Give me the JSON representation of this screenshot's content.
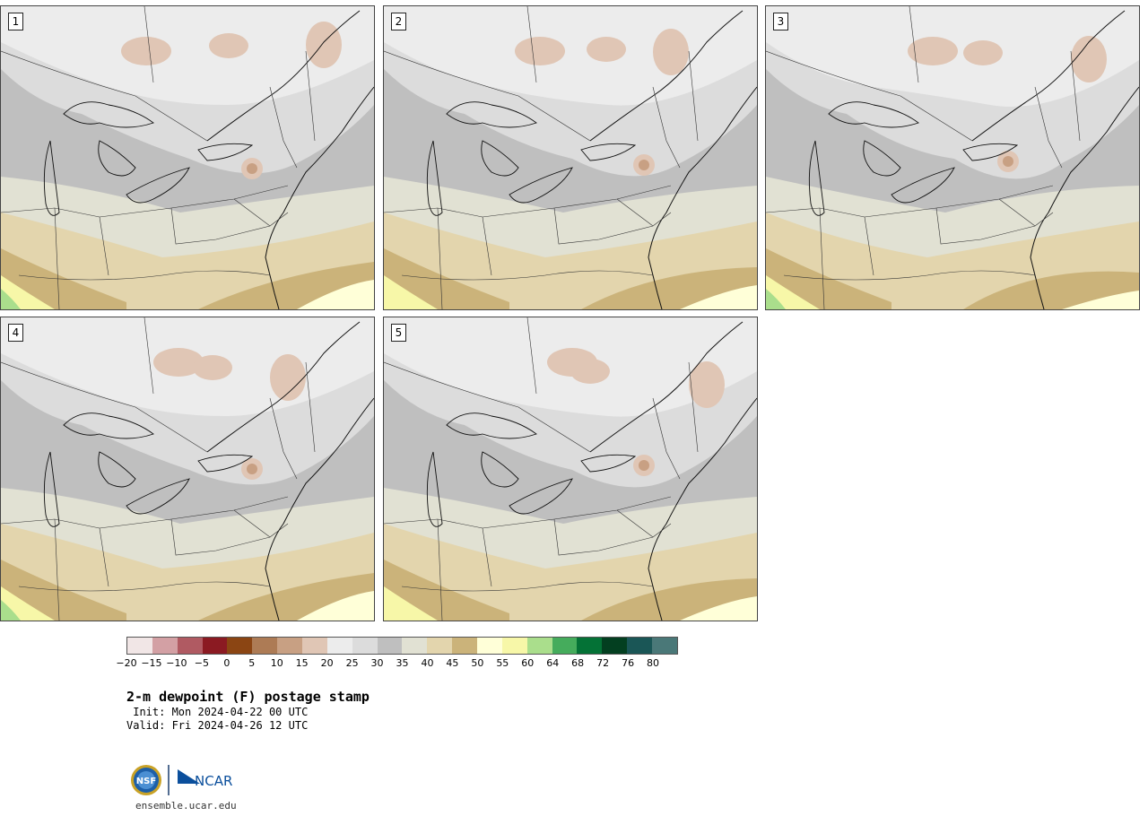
{
  "panels": [
    {
      "label": "1",
      "warm": 1
    },
    {
      "label": "2",
      "warm": 2
    },
    {
      "label": "3",
      "warm": 3
    },
    {
      "label": "4",
      "warm": 4
    },
    {
      "label": "5",
      "warm": 5
    }
  ],
  "colorbar": {
    "colors": [
      "#f1e6e6",
      "#d3a0a4",
      "#b05a62",
      "#8b1a22",
      "#8b4513",
      "#ad7b55",
      "#c8a083",
      "#e0c6b5",
      "#ececec",
      "#dcdcdc",
      "#bfbfbf",
      "#e1e1d3",
      "#e3d5ad",
      "#cbb37a",
      "#ffffd8",
      "#f7f7a8",
      "#aade8c",
      "#45ac5c",
      "#047236",
      "#033f20",
      "#1a5656",
      "#4a7878"
    ],
    "tick_labels": [
      "−20",
      "−15",
      "−10",
      "−5",
      "0",
      "5",
      "10",
      "15",
      "20",
      "25",
      "30",
      "35",
      "40",
      "45",
      "50",
      "55",
      "60",
      "64",
      "68",
      "72",
      "76",
      "80"
    ]
  },
  "title": "2-m dewpoint (F) postage stamp",
  "init": " Init: Mon 2024-04-22 00 UTC",
  "valid": "Valid: Fri 2024-04-26 12 UTC",
  "logo": {
    "nsf_text": "NSF",
    "ncar_text": "NCAR"
  },
  "site": "ensemble.ucar.edu"
}
